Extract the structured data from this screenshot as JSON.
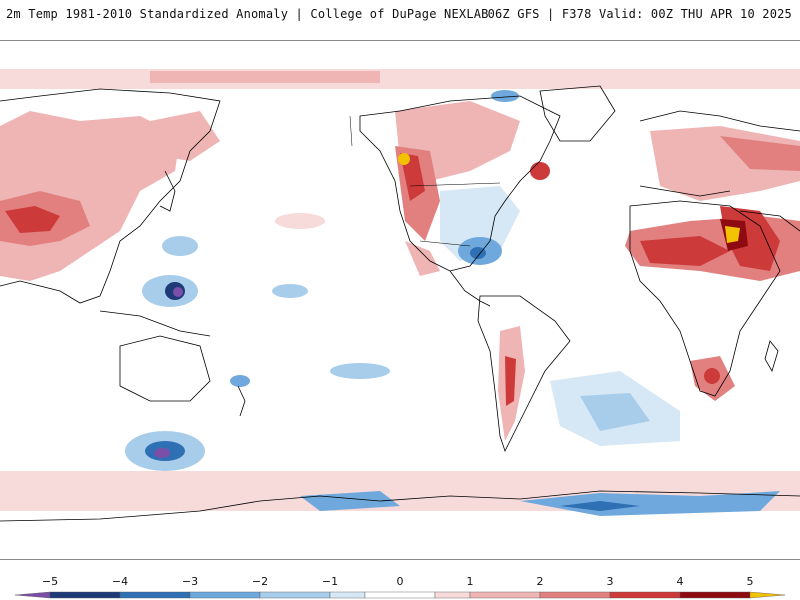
{
  "header": {
    "left_title": "2m Temp 1981-2010 Standardized Anomaly | College of DuPage NEXLAB",
    "right_title": "06Z GFS | F378 Valid: 00Z THU APR 10 2025"
  },
  "map": {
    "projection": "cylindrical-equidistant, Pacific-centered",
    "field": "2m temperature standardized anomaly",
    "coastline_color": "#000000",
    "background_color": "#ffffff"
  },
  "legend": {
    "tick_labels": [
      "-5",
      "-4",
      "-3",
      "-2",
      "-1",
      "0",
      "1",
      "2",
      "3",
      "4",
      "5"
    ],
    "color_bins": [
      {
        "range": [
          -5.5,
          -5
        ],
        "color": "#7b4fa8"
      },
      {
        "range": [
          -5,
          -4
        ],
        "color": "#1f3a78"
      },
      {
        "range": [
          -4,
          -3
        ],
        "color": "#2f6fb4"
      },
      {
        "range": [
          -3,
          -2
        ],
        "color": "#6ea8dc"
      },
      {
        "range": [
          -2,
          -1
        ],
        "color": "#a8cdeb"
      },
      {
        "range": [
          -1,
          -0.5
        ],
        "color": "#d6e7f5"
      },
      {
        "range": [
          -0.5,
          0.5
        ],
        "color": "#ffffff"
      },
      {
        "range": [
          0.5,
          1
        ],
        "color": "#f7dada"
      },
      {
        "range": [
          1,
          2
        ],
        "color": "#efb4b4"
      },
      {
        "range": [
          2,
          3
        ],
        "color": "#e28080"
      },
      {
        "range": [
          3,
          4
        ],
        "color": "#cd3a3a"
      },
      {
        "range": [
          4,
          5
        ],
        "color": "#8f0b12"
      },
      {
        "range": [
          5,
          5.5
        ],
        "color": "#f2c200"
      }
    ]
  },
  "anomaly_regions": [
    {
      "name": "central-asia-warm",
      "level": 3
    },
    {
      "name": "himalaya-warm",
      "level": 4
    },
    {
      "name": "north-africa-warm",
      "level": 4
    },
    {
      "name": "egypt-hotspot",
      "level": 5
    },
    {
      "name": "canada-west-warm",
      "level": 4
    },
    {
      "name": "pnw-hotspot",
      "level": 5
    },
    {
      "name": "nova-scotia-warm",
      "level": 3
    },
    {
      "name": "sahel-warm",
      "level": 3
    },
    {
      "name": "arabia-warm",
      "level": 3
    },
    {
      "name": "south-africa-warm",
      "level": 3
    },
    {
      "name": "andes-warm",
      "level": 3
    },
    {
      "name": "southern-ocean-cold",
      "level": -4
    },
    {
      "name": "philippine-sea-cold",
      "level": -4
    },
    {
      "name": "gulf-of-mexico-cold",
      "level": -2
    },
    {
      "name": "antarctic-coast-cold",
      "level": -2
    },
    {
      "name": "south-atlantic-cold",
      "level": -1
    }
  ]
}
